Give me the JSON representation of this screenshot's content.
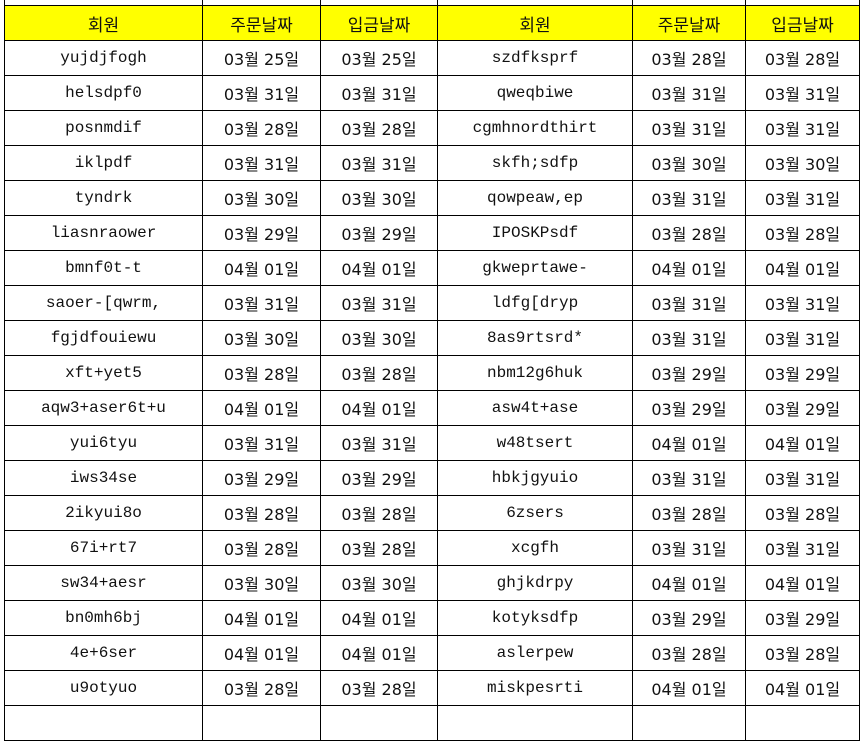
{
  "headers": [
    "회원",
    "주문날짜",
    "입금날짜",
    "회원",
    "주문날짜",
    "입금날짜"
  ],
  "colors": {
    "header_bg": "#ffff00",
    "grid": "#000000"
  },
  "rows": [
    [
      "yujdjfogh",
      "03월 25일",
      "03월 25일",
      "szdfksprf",
      "03월 28일",
      "03월 28일"
    ],
    [
      "helsdpf0",
      "03월 31일",
      "03월 31일",
      "qweqbiwe",
      "03월 31일",
      "03월 31일"
    ],
    [
      "posnmdif",
      "03월 28일",
      "03월 28일",
      "cgmhnordthirt",
      "03월 31일",
      "03월 31일"
    ],
    [
      "iklpdf",
      "03월 31일",
      "03월 31일",
      "skfh;sdfp",
      "03월 30일",
      "03월 30일"
    ],
    [
      "tyndrk",
      "03월 30일",
      "03월 30일",
      "qowpeaw,ep",
      "03월 31일",
      "03월 31일"
    ],
    [
      "liasnraower",
      "03월 29일",
      "03월 29일",
      "IPOSKPsdf",
      "03월 28일",
      "03월 28일"
    ],
    [
      "bmnf0t-t",
      "04월 01일",
      "04월 01일",
      "gkweprtawe-",
      "04월 01일",
      "04월 01일"
    ],
    [
      "saoer-[qwrm,",
      "03월 31일",
      "03월 31일",
      "ldfg[dryp",
      "03월 31일",
      "03월 31일"
    ],
    [
      "fgjdfouiewu",
      "03월 30일",
      "03월 30일",
      "8as9rtsrd*",
      "03월 31일",
      "03월 31일"
    ],
    [
      "xft+yet5",
      "03월 28일",
      "03월 28일",
      "nbm12g6huk",
      "03월 29일",
      "03월 29일"
    ],
    [
      "aqw3+aser6t+u",
      "04월 01일",
      "04월 01일",
      "asw4t+ase",
      "03월 29일",
      "03월 29일"
    ],
    [
      "yui6tyu",
      "03월 31일",
      "03월 31일",
      "w48tsert",
      "04월 01일",
      "04월 01일"
    ],
    [
      "iws34se",
      "03월 29일",
      "03월 29일",
      "hbkjgyuio",
      "03월 31일",
      "03월 31일"
    ],
    [
      "2ikyui8o",
      "03월 28일",
      "03월 28일",
      "6zsers",
      "03월 28일",
      "03월 28일"
    ],
    [
      "67i+rt7",
      "03월 28일",
      "03월 28일",
      "xcgfh",
      "03월 31일",
      "03월 31일"
    ],
    [
      "sw34+aesr",
      "03월 30일",
      "03월 30일",
      "ghjkdrpy",
      "04월 01일",
      "04월 01일"
    ],
    [
      "bn0mh6bj",
      "04월 01일",
      "04월 01일",
      "kotyksdfp",
      "03월 29일",
      "03월 29일"
    ],
    [
      "4e+6ser",
      "04월 01일",
      "04월 01일",
      "aslerpew",
      "03월 28일",
      "03월 28일"
    ],
    [
      "u9otyuo",
      "03월 28일",
      "03월 28일",
      "miskpesrti",
      "04월 01일",
      "04월 01일"
    ]
  ]
}
